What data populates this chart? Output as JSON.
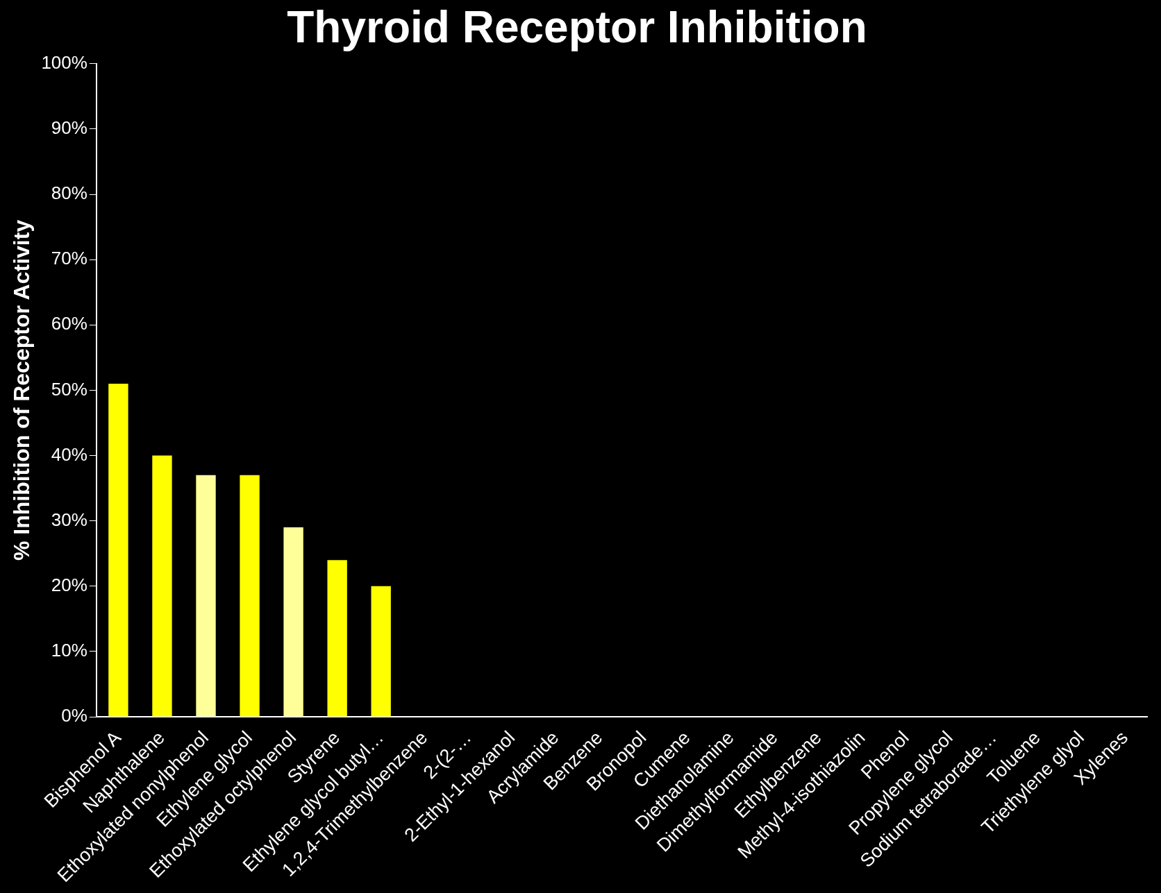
{
  "chart_data": {
    "type": "bar",
    "title": "Thyroid Receptor Inhibition",
    "ylabel": "% Inhibition of Receptor Activity",
    "categories": [
      "Bisphenol A",
      "Naphthalene",
      "Ethoxylated nonylphenol",
      "Ethylene glycol",
      "Ethoxylated octylphenol",
      "Styrene",
      "Ethylene glycol butyl…",
      "1,2,4-Trimethylbenzene",
      "2-(2-…",
      "2-Ethyl-1-hexanol",
      "Acrylamide",
      "Benzene",
      "Bronopol",
      "Cumene",
      "Diethanolamine",
      "Dimethylformamide",
      "Ethylbenzene",
      "Methyl-4-isothiazolin",
      "Phenol",
      "Propylene glycol",
      "Sodium tetraborade…",
      "Toluene",
      "Triethylene glyol",
      "Xylenes"
    ],
    "values": [
      51,
      40,
      37,
      37,
      29,
      24,
      20,
      0,
      0,
      0,
      0,
      0,
      0,
      0,
      0,
      0,
      0,
      0,
      0,
      0,
      0,
      0,
      0,
      0
    ],
    "colors": [
      "#ffff00",
      "#ffff00",
      "#ffff99",
      "#ffff00",
      "#ffff99",
      "#ffff00",
      "#ffff00",
      "#ffff00",
      "#ffff00",
      "#ffff00",
      "#ffff00",
      "#ffff00",
      "#ffff00",
      "#ffff00",
      "#ffff00",
      "#ffff00",
      "#ffff00",
      "#ffff00",
      "#ffff00",
      "#ffff00",
      "#ffff00",
      "#ffff00",
      "#ffff00",
      "#ffff00"
    ],
    "ylim": [
      0,
      100
    ],
    "yticks": [
      {
        "value": 0,
        "label": "0%"
      },
      {
        "value": 10,
        "label": "10%"
      },
      {
        "value": 20,
        "label": "20%"
      },
      {
        "value": 30,
        "label": "30%"
      },
      {
        "value": 40,
        "label": "40%"
      },
      {
        "value": 50,
        "label": "50%"
      },
      {
        "value": 60,
        "label": "60%"
      },
      {
        "value": 70,
        "label": "70%"
      },
      {
        "value": 80,
        "label": "80%"
      },
      {
        "value": 90,
        "label": "90%"
      },
      {
        "value": 100,
        "label": "100%"
      }
    ]
  }
}
